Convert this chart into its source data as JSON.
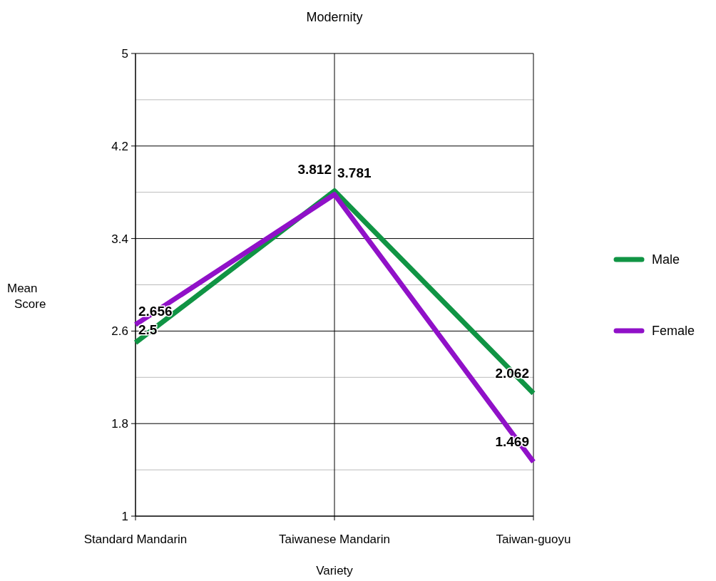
{
  "chart_data": {
    "type": "line",
    "title": "Modernity",
    "xlabel": "Variety",
    "ylabel": "Mean Score",
    "categories": [
      "Standard Mandarin",
      "Taiwanese Mandarin",
      "Taiwan-guoyu"
    ],
    "series": [
      {
        "name": "Male",
        "color": "#109444",
        "values": [
          2.5,
          3.812,
          2.062
        ]
      },
      {
        "name": "Female",
        "color": "#9011c8",
        "values": [
          2.656,
          3.781,
          1.469
        ]
      }
    ],
    "ylim": [
      1,
      5
    ],
    "yticks": [
      1,
      {
        "value": 1.4,
        "label": null
      },
      1.8,
      {
        "value": 2.2,
        "label": null
      },
      2.6,
      {
        "value": 3.0,
        "label": null
      },
      3.4,
      {
        "value": 3.8,
        "label": null
      },
      4.2,
      {
        "value": 4.6,
        "label": null
      },
      5
    ],
    "grid": true,
    "legend": "right",
    "data_labels": true,
    "marker": "none",
    "line_style": "solid"
  }
}
